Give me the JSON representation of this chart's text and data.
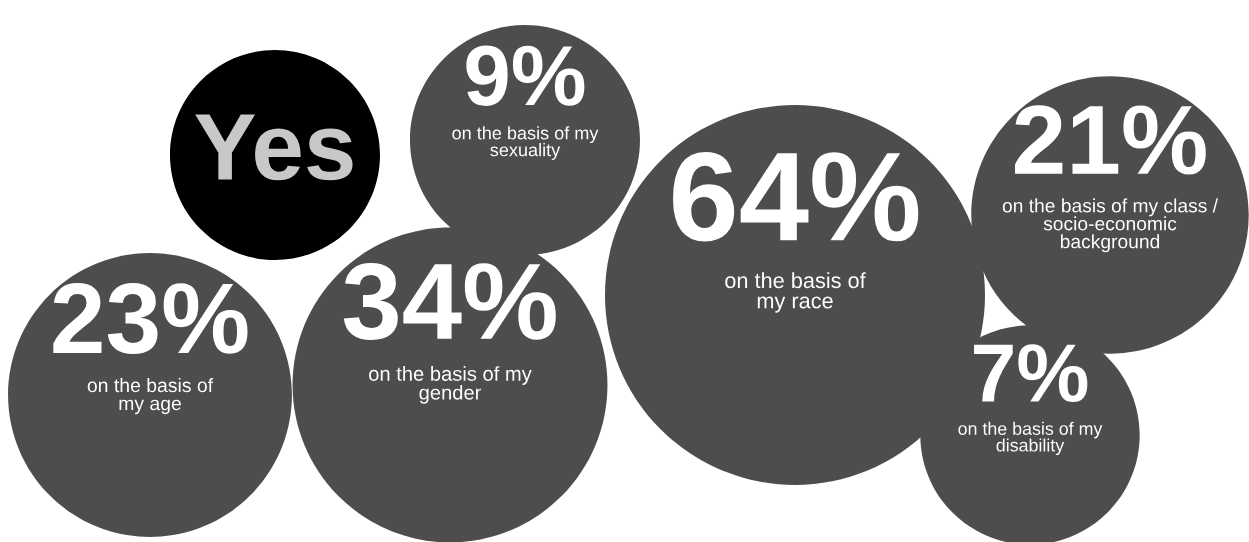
{
  "chart_data": {
    "type": "other",
    "title": "Yes",
    "categories": [
      "on the basis of\nmy age",
      "on the basis of my\ngender",
      "on the basis of my\nsexuality",
      "on the basis of\nmy race",
      "on the basis of my class /\nsocio-economic\nbackground",
      "on the basis of my\ndisability"
    ],
    "values": [
      23,
      34,
      9,
      64,
      21,
      7
    ],
    "value_labels": [
      "23%",
      "34%",
      "9%",
      "64%",
      "21%",
      "7%"
    ],
    "color": "#4d4d4d"
  }
}
